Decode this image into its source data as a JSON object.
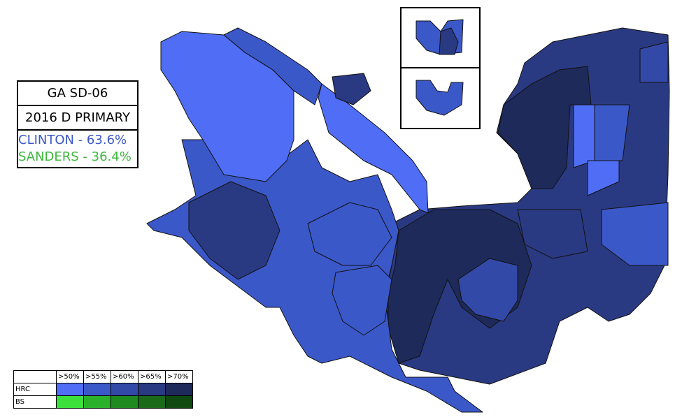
{
  "title_box": {
    "lines": [
      "GA SD-06",
      "2016 D PRIMARY"
    ],
    "results": [
      {
        "text": "CLINTON - 63.6%",
        "color": "#3b58c9"
      },
      {
        "text": "SANDERS - 36.4%",
        "color": "#3cb83c"
      }
    ]
  },
  "legend": {
    "headers": [
      ">50%",
      ">55%",
      ">60%",
      ">65%",
      ">70%"
    ],
    "rows": [
      {
        "label": "HRC",
        "colors": [
          "#4f6ef5",
          "#3b58c9",
          "#3349a8",
          "#2a3a82",
          "#1e2a5a"
        ]
      },
      {
        "label": "BS",
        "colors": [
          "#3be03b",
          "#2ab02a",
          "#1f8a1f",
          "#1a6a1a",
          "#104a10"
        ]
      }
    ]
  }
}
